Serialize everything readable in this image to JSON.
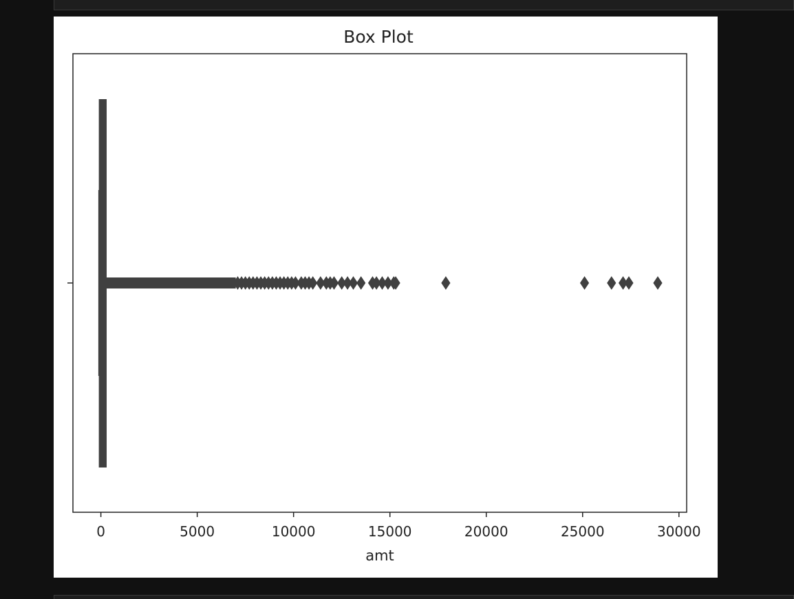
{
  "chart_data": {
    "type": "box",
    "orientation": "horizontal",
    "title": "Box Plot",
    "xlabel": "amt",
    "ylabel": "",
    "xlim": [
      -1450,
      30400
    ],
    "xticks": [
      0,
      5000,
      10000,
      15000,
      20000,
      25000,
      30000
    ],
    "xtick_labels": [
      "0",
      "5000",
      "10000",
      "15000",
      "20000",
      "25000",
      "30000"
    ],
    "grid": false,
    "box": {
      "whisker_low": 1,
      "q1": 10,
      "median": 47,
      "q3": 83,
      "whisker_high": 193
    },
    "outliers_dense_range": [
      200,
      7000
    ],
    "outliers": [
      7100,
      7300,
      7500,
      7700,
      7900,
      8100,
      8300,
      8500,
      8700,
      8900,
      9100,
      9300,
      9500,
      9700,
      9900,
      10100,
      10400,
      10600,
      10800,
      11000,
      11400,
      11700,
      11900,
      12100,
      12500,
      12800,
      13100,
      13500,
      14100,
      14300,
      14600,
      14900,
      15200,
      15300,
      17900,
      25100,
      26500,
      27100,
      27400,
      28900
    ],
    "color": "#404040"
  }
}
